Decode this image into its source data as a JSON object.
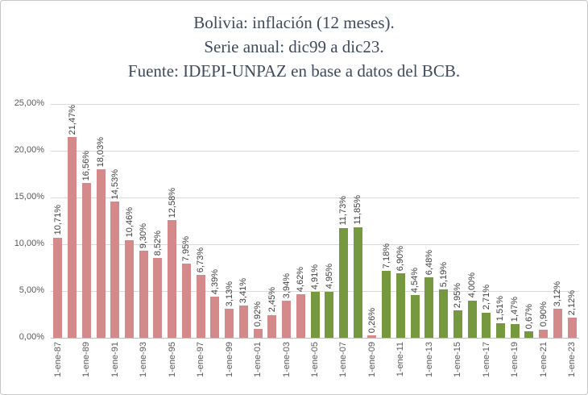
{
  "title": {
    "line1": "Bolivia: inflación (12 meses).",
    "line2": "Serie anual: dic99 a dic23.",
    "line3": "Fuente: IDEPI-UNPAZ en base a datos del BCB."
  },
  "chart_data": {
    "type": "bar",
    "title": "Bolivia: inflación (12 meses). Serie anual: dic99 a dic23. Fuente: IDEPI-UNPAZ en base a datos del BCB.",
    "ylabel": "",
    "xlabel": "",
    "ylim": [
      0,
      25
    ],
    "grid": true,
    "legend": false,
    "y_ticks": [
      0,
      5,
      10,
      15,
      20,
      25
    ],
    "y_tick_labels": [
      "0,00%",
      "5,00%",
      "10,00%",
      "15,00%",
      "20,00%",
      "25,00%"
    ],
    "x_tick_labels": [
      "1-ene-87",
      "1-ene-89",
      "1-ene-91",
      "1-ene-93",
      "1-ene-95",
      "1-ene-97",
      "1-ene-99",
      "1-ene-01",
      "1-ene-03",
      "1-ene-05",
      "1-ene-07",
      "1-ene-09",
      "1-ene-11",
      "1-ene-13",
      "1-ene-15",
      "1-ene-17",
      "1-ene-19",
      "1-ene-21",
      "1-ene-23"
    ],
    "x_ticks_every_other_bar": true,
    "palette": {
      "pink": "#D48A8A",
      "green": "#76993F"
    },
    "bars": [
      {
        "label": "10,71%",
        "value": 10.71,
        "color": "pink"
      },
      {
        "label": "21,47%",
        "value": 21.47,
        "color": "pink"
      },
      {
        "label": "16,56%",
        "value": 16.56,
        "color": "pink"
      },
      {
        "label": "18,03%",
        "value": 18.03,
        "color": "pink"
      },
      {
        "label": "14,53%",
        "value": 14.53,
        "color": "pink"
      },
      {
        "label": "10,46%",
        "value": 10.46,
        "color": "pink"
      },
      {
        "label": "9,30%",
        "value": 9.3,
        "color": "pink"
      },
      {
        "label": "8,52%",
        "value": 8.52,
        "color": "pink"
      },
      {
        "label": "12,58%",
        "value": 12.58,
        "color": "pink"
      },
      {
        "label": "7,95%",
        "value": 7.95,
        "color": "pink"
      },
      {
        "label": "6,73%",
        "value": 6.73,
        "color": "pink"
      },
      {
        "label": "4,39%",
        "value": 4.39,
        "color": "pink"
      },
      {
        "label": "3,13%",
        "value": 3.13,
        "color": "pink"
      },
      {
        "label": "3,41%",
        "value": 3.41,
        "color": "pink"
      },
      {
        "label": "0,92%",
        "value": 0.92,
        "color": "pink"
      },
      {
        "label": "2,45%",
        "value": 2.45,
        "color": "pink"
      },
      {
        "label": "3,94%",
        "value": 3.94,
        "color": "pink"
      },
      {
        "label": "4,62%",
        "value": 4.62,
        "color": "pink"
      },
      {
        "label": "4,91%",
        "value": 4.91,
        "color": "green"
      },
      {
        "label": "4,95%",
        "value": 4.95,
        "color": "green"
      },
      {
        "label": "11,73%",
        "value": 11.73,
        "color": "green"
      },
      {
        "label": "11,85%",
        "value": 11.85,
        "color": "green"
      },
      {
        "label": "0,26%",
        "value": 0.26,
        "color": "pink"
      },
      {
        "label": "7,18%",
        "value": 7.18,
        "color": "green"
      },
      {
        "label": "6,90%",
        "value": 6.9,
        "color": "green"
      },
      {
        "label": "4,54%",
        "value": 4.54,
        "color": "green"
      },
      {
        "label": "6,48%",
        "value": 6.48,
        "color": "green"
      },
      {
        "label": "5,19%",
        "value": 5.19,
        "color": "green"
      },
      {
        "label": "2,95%",
        "value": 2.95,
        "color": "green"
      },
      {
        "label": "4,00%",
        "value": 4.0,
        "color": "green"
      },
      {
        "label": "2,71%",
        "value": 2.71,
        "color": "green"
      },
      {
        "label": "1,51%",
        "value": 1.51,
        "color": "green"
      },
      {
        "label": "1,47%",
        "value": 1.47,
        "color": "green"
      },
      {
        "label": "0,67%",
        "value": 0.67,
        "color": "green"
      },
      {
        "label": "0,90%",
        "value": 0.9,
        "color": "pink"
      },
      {
        "label": "3,12%",
        "value": 3.12,
        "color": "pink"
      },
      {
        "label": "2,12%",
        "value": 2.12,
        "color": "pink"
      }
    ]
  }
}
